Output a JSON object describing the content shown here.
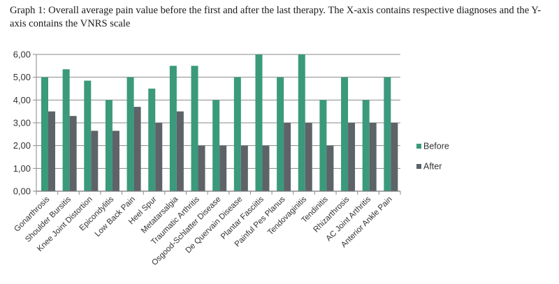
{
  "caption": "Graph 1: Overall average pain value before the first and after the last therapy. The X-axis contains respective diagnoses and the Y-axis contains the VNRS scale",
  "chart_data": {
    "type": "bar",
    "categories": [
      "Gonarthrosis",
      "Shoulder Bursitis",
      "Knee Joint Distortion",
      "Epicondylitis",
      "Low Back Pain",
      "Heel Spur",
      "Metatarsalgia",
      "Traumatic Arthritis",
      "Osgood-Schlatter Disease",
      "De Quervain Disease",
      "Plantar Fasciitis",
      "Painful Pes Planus",
      "Tendovaginitis",
      "Tendinitis",
      "Rhizarthrosis",
      "AC Joint Arthritis",
      "Anterior Ankle Pain"
    ],
    "series": [
      {
        "name": "Before",
        "color": "#3a9a7b",
        "values": [
          5.0,
          5.35,
          4.85,
          4.0,
          5.0,
          4.5,
          5.5,
          5.5,
          4.0,
          5.0,
          6.0,
          5.0,
          6.0,
          4.0,
          5.0,
          4.0,
          5.0
        ]
      },
      {
        "name": "After",
        "color": "#5d6368",
        "values": [
          3.5,
          3.3,
          2.65,
          2.65,
          3.7,
          3.0,
          3.5,
          2.0,
          2.0,
          2.0,
          2.0,
          3.0,
          3.0,
          2.0,
          3.0,
          3.0,
          3.0
        ]
      }
    ],
    "yticks": [
      "0,00",
      "1,00",
      "2,00",
      "3,00",
      "4,00",
      "5,00",
      "6,00"
    ],
    "ylim": [
      0,
      6
    ],
    "grid": true,
    "legend_position": "right"
  }
}
